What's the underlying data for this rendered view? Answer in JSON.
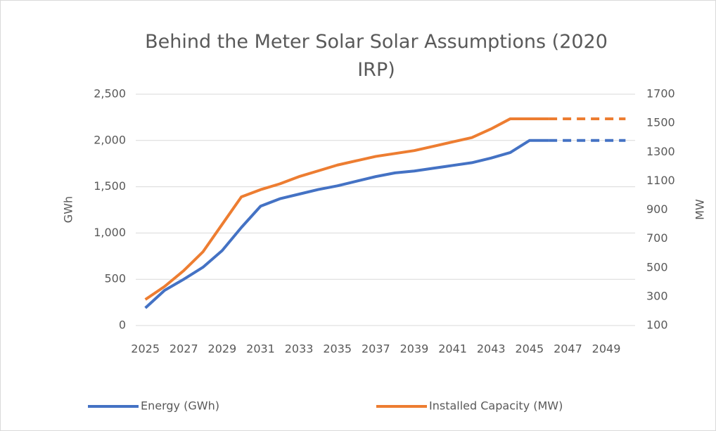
{
  "chart_data": {
    "type": "line",
    "title": "Behind the Meter Solar Solar Assumptions (2020 IRP)",
    "y_label": "GWh",
    "y2_label": "MW",
    "x": [
      2025,
      2026,
      2027,
      2028,
      2029,
      2030,
      2031,
      2032,
      2033,
      2034,
      2035,
      2036,
      2037,
      2038,
      2039,
      2040,
      2041,
      2042,
      2043,
      2044,
      2045,
      2046,
      2047,
      2048,
      2049,
      2050
    ],
    "xlim": [
      2024.5,
      2050.5
    ],
    "xticks": [
      2025,
      2027,
      2029,
      2031,
      2033,
      2035,
      2037,
      2039,
      2041,
      2043,
      2045,
      2047,
      2049
    ],
    "ylim": [
      0,
      2500
    ],
    "yticks": [
      0,
      500,
      {
        "value": 1000,
        "label": "1,000"
      },
      {
        "value": 1500,
        "label": "1,500"
      },
      {
        "value": 2000,
        "label": "2,000"
      },
      {
        "value": 2500,
        "label": "2,500"
      }
    ],
    "y2lim": [
      100,
      1700
    ],
    "y2ticks": [
      100,
      300,
      500,
      700,
      900,
      1100,
      1300,
      1500,
      1700
    ],
    "grid": true,
    "legend": "bottom",
    "dashed_from_x": 2046,
    "series": [
      {
        "name": "Energy (GWh)",
        "color": "#4472c4",
        "axis": "y",
        "values": [
          190,
          380,
          500,
          630,
          810,
          1060,
          1290,
          1370,
          1420,
          1470,
          1510,
          1560,
          1610,
          1650,
          1670,
          1700,
          1730,
          1760,
          1810,
          1870,
          2000,
          2000,
          2000,
          2000,
          2000,
          2000
        ]
      },
      {
        "name": "Installed Capacity (MW)",
        "color": "#ed7d31",
        "axis": "y2",
        "values": [
          280,
          370,
          480,
          610,
          800,
          990,
          1040,
          1080,
          1130,
          1170,
          1210,
          1240,
          1270,
          1290,
          1310,
          1340,
          1370,
          1400,
          1460,
          1530,
          1530,
          1530,
          1530,
          1530,
          1530,
          1530
        ]
      }
    ]
  }
}
